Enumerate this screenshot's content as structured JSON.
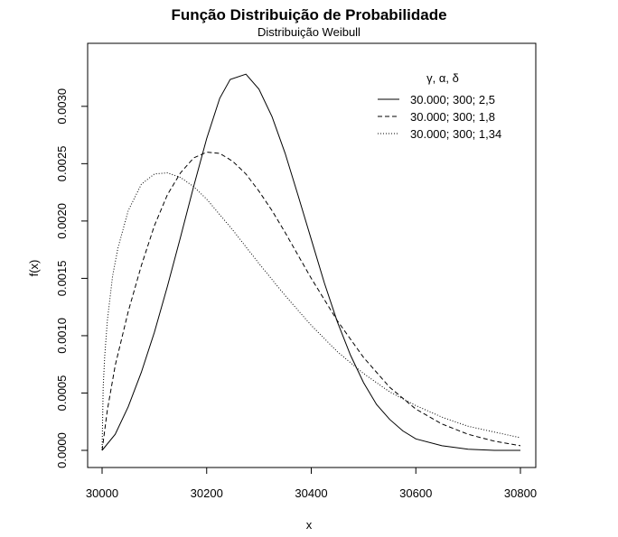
{
  "chart_data": {
    "type": "line",
    "title": "Função Distribuição de Probabilidade",
    "subtitle": "Distribuição Weibull",
    "xlabel": "x",
    "ylabel": "f(x)",
    "xlim": [
      30000,
      30800
    ],
    "ylim": [
      0,
      0.0034
    ],
    "x_ticks": [
      "30000",
      "30200",
      "30400",
      "30600",
      "30800"
    ],
    "y_ticks": [
      "0.0000",
      "0.0005",
      "0.0010",
      "0.0015",
      "0.0020",
      "0.0025",
      "0.0030"
    ],
    "grid": false,
    "legend": {
      "title": "γ, α, δ",
      "position": "top-right",
      "entries": [
        "30.000; 300; 2,5",
        "30.000; 300; 1,8",
        "30.000; 300; 1,34"
      ]
    },
    "series": [
      {
        "name": "30.000; 300; 2,5",
        "line_style": "solid",
        "x": [
          30000,
          30025,
          30050,
          30075,
          30100,
          30125,
          30150,
          30175,
          30200,
          30225,
          30245,
          30275,
          30300,
          30325,
          30350,
          30375,
          30400,
          30425,
          30450,
          30475,
          30500,
          30525,
          30550,
          30575,
          30600,
          30650,
          30700,
          30750,
          30800
        ],
        "y": [
          0.0,
          0.00014,
          0.00038,
          0.00068,
          0.00103,
          0.00143,
          0.00186,
          0.0023,
          0.00272,
          0.00307,
          0.003235,
          0.00328,
          0.00315,
          0.00291,
          0.00259,
          0.00222,
          0.00184,
          0.00146,
          0.00112,
          0.00083,
          0.00059,
          0.0004,
          0.00027,
          0.00017,
          0.0001,
          4e-05,
          1e-05,
          0.0,
          0.0
        ]
      },
      {
        "name": "30.000; 300; 1,8",
        "line_style": "dashed",
        "x": [
          30000,
          30010,
          30025,
          30050,
          30075,
          30100,
          30125,
          30150,
          30175,
          30200,
          30225,
          30250,
          30275,
          30300,
          30325,
          30350,
          30375,
          30400,
          30450,
          30500,
          30550,
          30600,
          30650,
          30700,
          30750,
          30800
        ],
        "y": [
          0.0,
          0.00035,
          0.00074,
          0.00121,
          0.00161,
          0.00196,
          0.00223,
          0.00242,
          0.00255,
          0.0026,
          0.00259,
          0.00252,
          0.00241,
          0.00226,
          0.00209,
          0.0019,
          0.0017,
          0.0015,
          0.00113,
          0.00081,
          0.00055,
          0.00036,
          0.00023,
          0.00014,
          8e-05,
          4e-05
        ]
      },
      {
        "name": "30.000; 300; 1,34",
        "line_style": "dotted",
        "x": [
          30000,
          30002,
          30005,
          30010,
          30020,
          30030,
          30050,
          30075,
          30100,
          30125,
          30150,
          30175,
          30200,
          30250,
          30300,
          30350,
          30400,
          30450,
          30500,
          30550,
          30600,
          30650,
          30700,
          30750,
          30800
        ],
        "y": [
          0.0,
          0.00055,
          0.00082,
          0.00113,
          0.00152,
          0.00176,
          0.00209,
          0.00232,
          0.00241,
          0.00242,
          0.00238,
          0.0023,
          0.00219,
          0.00192,
          0.00163,
          0.00135,
          0.00109,
          0.00086,
          0.00067,
          0.00051,
          0.00039,
          0.00029,
          0.00021,
          0.00016,
          0.00011
        ]
      }
    ]
  }
}
